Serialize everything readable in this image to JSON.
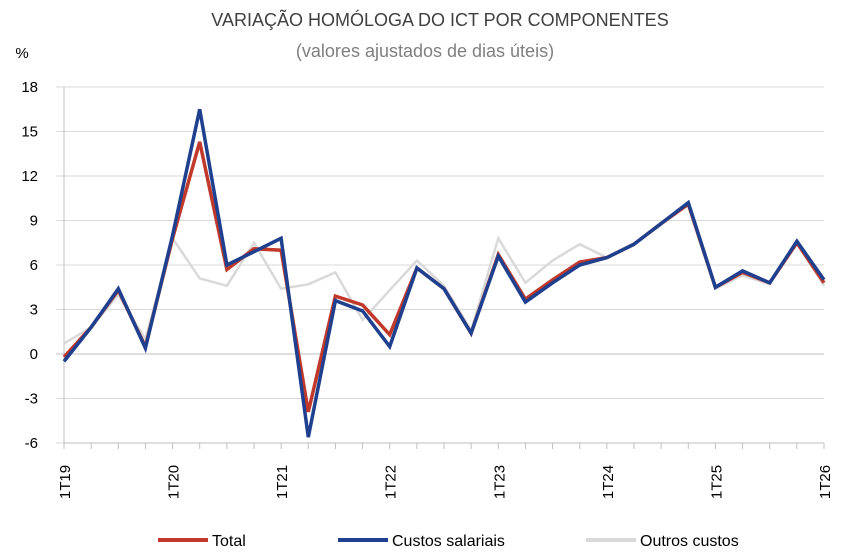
{
  "chart_data": {
    "type": "line",
    "title": "VARIAÇÃO HOMÓLOGA DO ICT POR COMPONENTES",
    "subtitle": "(valores ajustados de dias úteis)",
    "ylabel": "%",
    "ylim": [
      -6,
      18
    ],
    "yticks": [
      "18",
      "15",
      "12",
      "9",
      "6",
      "3",
      "0",
      "-3",
      "-6"
    ],
    "ytick_values": [
      18,
      15,
      12,
      9,
      6,
      3,
      0,
      -3,
      -6
    ],
    "xtick_labels": [
      "1T19",
      "1T20",
      "1T21",
      "1T22",
      "1T23",
      "1T24",
      "1T25",
      "1T26"
    ],
    "xtick_indices": [
      0,
      4,
      8,
      12,
      16,
      20,
      24,
      28
    ],
    "legend_position": "bottom",
    "grid": "horizontal",
    "series": [
      {
        "name": "Outros custos",
        "color": "#d9d9d9",
        "values": [
          0.7,
          1.8,
          4.0,
          1.0,
          7.8,
          5.1,
          4.6,
          7.5,
          4.4,
          4.7,
          5.5,
          2.3,
          4.3,
          6.3,
          4.6,
          1.6,
          7.8,
          4.8,
          6.3,
          7.4,
          6.5,
          7.4,
          8.7,
          10.1,
          4.4,
          5.3,
          4.7,
          7.5,
          4.6
        ]
      },
      {
        "name": "Total",
        "color": "#c0392b",
        "values": [
          -0.2,
          1.8,
          4.3,
          0.5,
          7.8,
          14.3,
          5.7,
          7.1,
          7.0,
          -3.9,
          3.9,
          3.3,
          1.3,
          5.8,
          4.4,
          1.4,
          6.7,
          3.7,
          5.0,
          6.2,
          6.5,
          7.4,
          8.8,
          10.1,
          4.5,
          5.5,
          4.8,
          7.5,
          4.8
        ]
      },
      {
        "name": "Custos salariais",
        "color": "#1f3f8f",
        "values": [
          -0.5,
          1.8,
          4.4,
          0.4,
          8.0,
          16.5,
          6.0,
          6.9,
          7.8,
          -5.6,
          3.6,
          2.9,
          0.5,
          5.8,
          4.4,
          1.4,
          6.6,
          3.5,
          4.8,
          6.0,
          6.5,
          7.4,
          8.8,
          10.2,
          4.5,
          5.6,
          4.8,
          7.6,
          5.0
        ]
      }
    ],
    "legend": [
      {
        "label": "Total",
        "color": "#c0392b"
      },
      {
        "label": "Custos salariais",
        "color": "#1f3f8f"
      },
      {
        "label": "Outros custos",
        "color": "#d9d9d9"
      }
    ]
  }
}
